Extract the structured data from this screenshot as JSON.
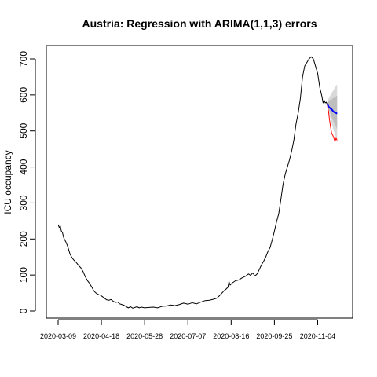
{
  "chart_data": {
    "type": "line",
    "title": "Austria: Regression with ARIMA(1,1,3) errors",
    "xlabel": "",
    "ylabel": "ICU occupancy",
    "x_start": "2020-03-09",
    "x_end": "2020-11-16",
    "ylim": [
      0,
      720
    ],
    "yticks": [
      0,
      100,
      200,
      300,
      400,
      500,
      600,
      700
    ],
    "xticks": [
      "2020-03-09",
      "2020-04-18",
      "2020-05-28",
      "2020-07-07",
      "2020-08-16",
      "2020-09-25",
      "2020-11-04"
    ],
    "grid": false,
    "series": [
      {
        "type": "line",
        "color": "#000000",
        "points": [
          [
            "2020-03-09",
            240
          ],
          [
            "2020-03-10",
            232
          ],
          [
            "2020-03-11",
            236
          ],
          [
            "2020-03-12",
            222
          ],
          [
            "2020-03-13",
            218
          ],
          [
            "2020-03-14",
            205
          ],
          [
            "2020-03-15",
            198
          ],
          [
            "2020-03-16",
            193
          ],
          [
            "2020-03-18",
            178
          ],
          [
            "2020-03-20",
            158
          ],
          [
            "2020-03-22",
            147
          ],
          [
            "2020-03-24",
            140
          ],
          [
            "2020-03-26",
            134
          ],
          [
            "2020-03-28",
            126
          ],
          [
            "2020-03-30",
            120
          ],
          [
            "2020-04-01",
            110
          ],
          [
            "2020-04-03",
            96
          ],
          [
            "2020-04-05",
            85
          ],
          [
            "2020-04-07",
            77
          ],
          [
            "2020-04-09",
            67
          ],
          [
            "2020-04-11",
            56
          ],
          [
            "2020-04-13",
            50
          ],
          [
            "2020-04-15",
            46
          ],
          [
            "2020-04-17",
            44
          ],
          [
            "2020-04-19",
            40
          ],
          [
            "2020-04-21",
            35
          ],
          [
            "2020-04-23",
            31
          ],
          [
            "2020-04-25",
            30
          ],
          [
            "2020-04-27",
            32
          ],
          [
            "2020-04-29",
            27
          ],
          [
            "2020-05-01",
            24
          ],
          [
            "2020-05-03",
            25
          ],
          [
            "2020-05-05",
            20
          ],
          [
            "2020-05-07",
            18
          ],
          [
            "2020-05-09",
            16
          ],
          [
            "2020-05-11",
            12
          ],
          [
            "2020-05-13",
            9
          ],
          [
            "2020-05-15",
            12
          ],
          [
            "2020-05-17",
            8
          ],
          [
            "2020-05-19",
            10
          ],
          [
            "2020-05-21",
            12
          ],
          [
            "2020-05-23",
            9
          ],
          [
            "2020-05-25",
            11
          ],
          [
            "2020-05-28",
            9
          ],
          [
            "2020-06-01",
            10
          ],
          [
            "2020-06-05",
            11
          ],
          [
            "2020-06-09",
            9
          ],
          [
            "2020-06-13",
            13
          ],
          [
            "2020-06-17",
            14
          ],
          [
            "2020-06-21",
            17
          ],
          [
            "2020-06-25",
            15
          ],
          [
            "2020-06-29",
            18
          ],
          [
            "2020-07-03",
            22
          ],
          [
            "2020-07-07",
            19
          ],
          [
            "2020-07-11",
            23
          ],
          [
            "2020-07-15",
            20
          ],
          [
            "2020-07-19",
            25
          ],
          [
            "2020-07-23",
            29
          ],
          [
            "2020-07-27",
            30
          ],
          [
            "2020-07-31",
            33
          ],
          [
            "2020-08-03",
            36
          ],
          [
            "2020-08-06",
            45
          ],
          [
            "2020-08-09",
            55
          ],
          [
            "2020-08-11",
            60
          ],
          [
            "2020-08-13",
            66
          ],
          [
            "2020-08-14",
            82
          ],
          [
            "2020-08-15",
            72
          ],
          [
            "2020-08-17",
            78
          ],
          [
            "2020-08-20",
            84
          ],
          [
            "2020-08-23",
            86
          ],
          [
            "2020-08-26",
            92
          ],
          [
            "2020-08-29",
            96
          ],
          [
            "2020-09-01",
            103
          ],
          [
            "2020-09-03",
            99
          ],
          [
            "2020-09-05",
            106
          ],
          [
            "2020-09-07",
            97
          ],
          [
            "2020-09-09",
            103
          ],
          [
            "2020-09-11",
            115
          ],
          [
            "2020-09-13",
            128
          ],
          [
            "2020-09-15",
            138
          ],
          [
            "2020-09-17",
            150
          ],
          [
            "2020-09-19",
            165
          ],
          [
            "2020-09-21",
            176
          ],
          [
            "2020-09-23",
            198
          ],
          [
            "2020-09-25",
            222
          ],
          [
            "2020-09-27",
            248
          ],
          [
            "2020-09-29",
            270
          ],
          [
            "2020-10-01",
            310
          ],
          [
            "2020-10-03",
            352
          ],
          [
            "2020-10-05",
            380
          ],
          [
            "2020-10-07",
            400
          ],
          [
            "2020-10-09",
            420
          ],
          [
            "2020-10-11",
            445
          ],
          [
            "2020-10-13",
            475
          ],
          [
            "2020-10-15",
            520
          ],
          [
            "2020-10-17",
            550
          ],
          [
            "2020-10-19",
            590
          ],
          [
            "2020-10-21",
            650
          ],
          [
            "2020-10-23",
            680
          ],
          [
            "2020-10-25",
            690
          ],
          [
            "2020-10-27",
            700
          ],
          [
            "2020-10-29",
            706
          ],
          [
            "2020-10-31",
            700
          ],
          [
            "2020-11-02",
            680
          ],
          [
            "2020-11-04",
            660
          ],
          [
            "2020-11-06",
            620
          ],
          [
            "2020-11-08",
            595
          ],
          [
            "2020-11-09",
            578
          ],
          [
            "2020-11-10",
            585
          ],
          [
            "2020-11-11",
            578
          ],
          [
            "2020-11-12",
            580
          ],
          [
            "2020-11-13",
            572
          ]
        ]
      },
      {
        "type": "line",
        "color": "#ff0000",
        "points": [
          [
            "2020-11-13",
            572
          ],
          [
            "2020-11-14",
            555
          ],
          [
            "2020-11-15",
            530
          ],
          [
            "2020-11-16",
            510
          ],
          [
            "2020-11-17",
            492
          ],
          [
            "2020-11-18",
            488
          ],
          [
            "2020-11-19",
            480
          ],
          [
            "2020-11-20",
            470
          ],
          [
            "2020-11-21",
            480
          ],
          [
            "2020-11-22",
            474
          ]
        ]
      },
      {
        "type": "line",
        "color": "#0000ff",
        "points": [
          [
            "2020-11-13",
            575
          ],
          [
            "2020-11-14",
            568
          ],
          [
            "2020-11-15",
            565
          ],
          [
            "2020-11-16",
            562
          ],
          [
            "2020-11-17",
            560
          ],
          [
            "2020-11-18",
            556
          ],
          [
            "2020-11-19",
            553
          ],
          [
            "2020-11-20",
            551
          ],
          [
            "2020-11-21",
            550
          ],
          [
            "2020-11-22",
            548
          ]
        ]
      }
    ],
    "bands": [
      {
        "color": "#d9d9d9",
        "x": [
          "2020-11-13",
          "2020-11-15",
          "2020-11-17",
          "2020-11-19",
          "2020-11-21",
          "2020-11-22"
        ],
        "lower": [
          572,
          545,
          520,
          500,
          480,
          470
        ],
        "upper": [
          582,
          595,
          605,
          615,
          625,
          630
        ]
      },
      {
        "color": "#bebebe",
        "x": [
          "2020-11-13",
          "2020-11-15",
          "2020-11-17",
          "2020-11-19",
          "2020-11-21",
          "2020-11-22"
        ],
        "lower": [
          574,
          555,
          538,
          525,
          512,
          505
        ],
        "upper": [
          580,
          585,
          588,
          592,
          596,
          598
        ]
      }
    ]
  }
}
